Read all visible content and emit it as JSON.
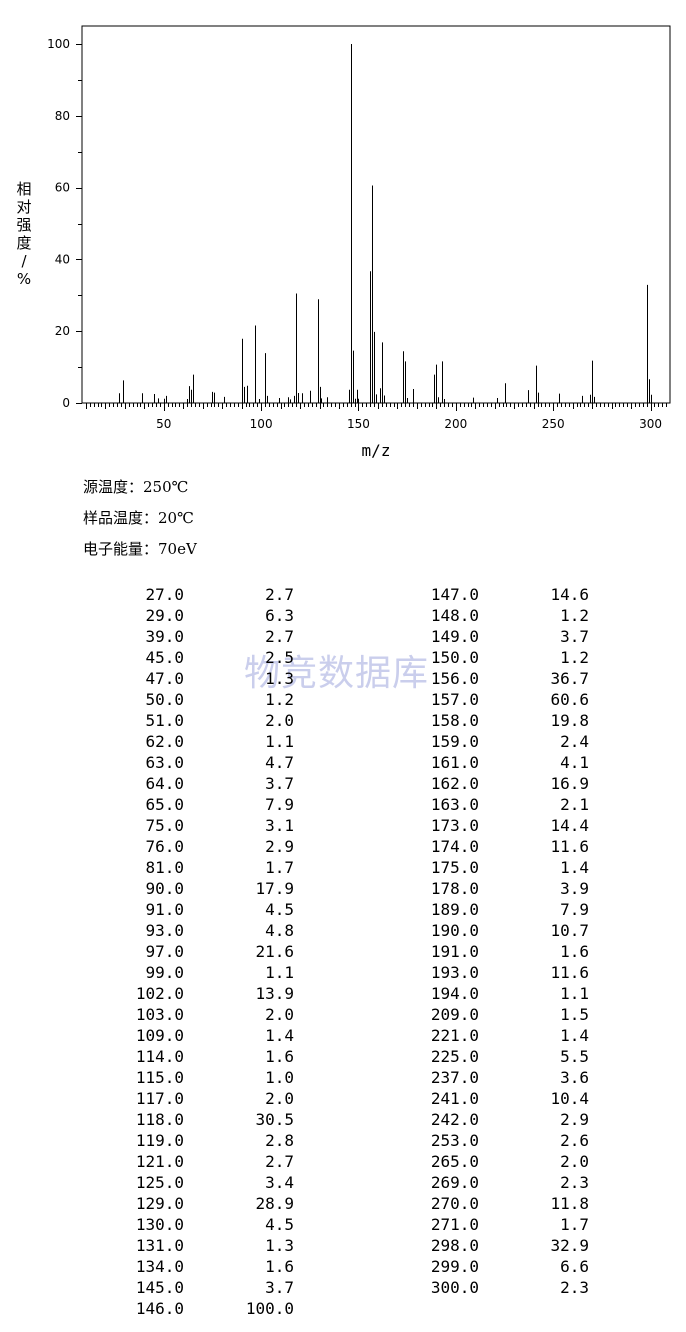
{
  "chart_data": {
    "type": "bar",
    "title": "",
    "xlabel": "m/z",
    "ylabel": "相对强度/%",
    "xlim": [
      8,
      310
    ],
    "ylim": [
      0,
      105
    ],
    "xticks": [
      50,
      100,
      150,
      200,
      250,
      300
    ],
    "yticks": [
      0,
      20,
      40,
      60,
      80,
      100
    ],
    "grid": false,
    "peaks": [
      [
        27.0,
        2.7
      ],
      [
        29.0,
        6.3
      ],
      [
        39.0,
        2.7
      ],
      [
        45.0,
        2.5
      ],
      [
        47.0,
        1.3
      ],
      [
        50.0,
        1.2
      ],
      [
        51.0,
        2.0
      ],
      [
        62.0,
        1.1
      ],
      [
        63.0,
        4.7
      ],
      [
        64.0,
        3.7
      ],
      [
        65.0,
        7.9
      ],
      [
        75.0,
        3.1
      ],
      [
        76.0,
        2.9
      ],
      [
        81.0,
        1.7
      ],
      [
        90.0,
        17.9
      ],
      [
        91.0,
        4.5
      ],
      [
        93.0,
        4.8
      ],
      [
        97.0,
        21.6
      ],
      [
        99.0,
        1.1
      ],
      [
        102.0,
        13.9
      ],
      [
        103.0,
        2.0
      ],
      [
        109.0,
        1.4
      ],
      [
        114.0,
        1.6
      ],
      [
        115.0,
        1.0
      ],
      [
        117.0,
        2.0
      ],
      [
        118.0,
        30.5
      ],
      [
        119.0,
        2.8
      ],
      [
        121.0,
        2.7
      ],
      [
        125.0,
        3.4
      ],
      [
        129.0,
        28.9
      ],
      [
        130.0,
        4.5
      ],
      [
        131.0,
        1.3
      ],
      [
        134.0,
        1.6
      ],
      [
        145.0,
        3.7
      ],
      [
        146.0,
        100.0
      ],
      [
        147.0,
        14.6
      ],
      [
        148.0,
        1.2
      ],
      [
        149.0,
        3.7
      ],
      [
        150.0,
        1.2
      ],
      [
        156.0,
        36.7
      ],
      [
        157.0,
        60.6
      ],
      [
        158.0,
        19.8
      ],
      [
        159.0,
        2.4
      ],
      [
        161.0,
        4.1
      ],
      [
        162.0,
        16.9
      ],
      [
        163.0,
        2.1
      ],
      [
        173.0,
        14.4
      ],
      [
        174.0,
        11.6
      ],
      [
        175.0,
        1.4
      ],
      [
        178.0,
        3.9
      ],
      [
        189.0,
        7.9
      ],
      [
        190.0,
        10.7
      ],
      [
        191.0,
        1.6
      ],
      [
        193.0,
        11.6
      ],
      [
        194.0,
        1.1
      ],
      [
        209.0,
        1.5
      ],
      [
        221.0,
        1.4
      ],
      [
        225.0,
        5.5
      ],
      [
        237.0,
        3.6
      ],
      [
        241.0,
        10.4
      ],
      [
        242.0,
        2.9
      ],
      [
        253.0,
        2.6
      ],
      [
        265.0,
        2.0
      ],
      [
        269.0,
        2.3
      ],
      [
        270.0,
        11.8
      ],
      [
        271.0,
        1.7
      ],
      [
        298.0,
        32.9
      ],
      [
        299.0,
        6.6
      ],
      [
        300.0,
        2.3
      ]
    ]
  },
  "conditions": {
    "source_temp": "源温度：250℃",
    "sample_temp": "样品温度：20℃",
    "electron_energy": "电子能量：70eV"
  },
  "watermark": "物竞数据库",
  "peak_table": {
    "left": [
      [
        "27.0",
        "2.7"
      ],
      [
        "29.0",
        "6.3"
      ],
      [
        "39.0",
        "2.7"
      ],
      [
        "45.0",
        "2.5"
      ],
      [
        "47.0",
        "1.3"
      ],
      [
        "50.0",
        "1.2"
      ],
      [
        "51.0",
        "2.0"
      ],
      [
        "62.0",
        "1.1"
      ],
      [
        "63.0",
        "4.7"
      ],
      [
        "64.0",
        "3.7"
      ],
      [
        "65.0",
        "7.9"
      ],
      [
        "75.0",
        "3.1"
      ],
      [
        "76.0",
        "2.9"
      ],
      [
        "81.0",
        "1.7"
      ],
      [
        "90.0",
        "17.9"
      ],
      [
        "91.0",
        "4.5"
      ],
      [
        "93.0",
        "4.8"
      ],
      [
        "97.0",
        "21.6"
      ],
      [
        "99.0",
        "1.1"
      ],
      [
        "102.0",
        "13.9"
      ],
      [
        "103.0",
        "2.0"
      ],
      [
        "109.0",
        "1.4"
      ],
      [
        "114.0",
        "1.6"
      ],
      [
        "115.0",
        "1.0"
      ],
      [
        "117.0",
        "2.0"
      ],
      [
        "118.0",
        "30.5"
      ],
      [
        "119.0",
        "2.8"
      ],
      [
        "121.0",
        "2.7"
      ],
      [
        "125.0",
        "3.4"
      ],
      [
        "129.0",
        "28.9"
      ],
      [
        "130.0",
        "4.5"
      ],
      [
        "131.0",
        "1.3"
      ],
      [
        "134.0",
        "1.6"
      ],
      [
        "145.0",
        "3.7"
      ],
      [
        "146.0",
        "100.0"
      ]
    ],
    "right": [
      [
        "147.0",
        "14.6"
      ],
      [
        "148.0",
        "1.2"
      ],
      [
        "149.0",
        "3.7"
      ],
      [
        "150.0",
        "1.2"
      ],
      [
        "156.0",
        "36.7"
      ],
      [
        "157.0",
        "60.6"
      ],
      [
        "158.0",
        "19.8"
      ],
      [
        "159.0",
        "2.4"
      ],
      [
        "161.0",
        "4.1"
      ],
      [
        "162.0",
        "16.9"
      ],
      [
        "163.0",
        "2.1"
      ],
      [
        "173.0",
        "14.4"
      ],
      [
        "174.0",
        "11.6"
      ],
      [
        "175.0",
        "1.4"
      ],
      [
        "178.0",
        "3.9"
      ],
      [
        "189.0",
        "7.9"
      ],
      [
        "190.0",
        "10.7"
      ],
      [
        "191.0",
        "1.6"
      ],
      [
        "193.0",
        "11.6"
      ],
      [
        "194.0",
        "1.1"
      ],
      [
        "209.0",
        "1.5"
      ],
      [
        "221.0",
        "1.4"
      ],
      [
        "225.0",
        "5.5"
      ],
      [
        "237.0",
        "3.6"
      ],
      [
        "241.0",
        "10.4"
      ],
      [
        "242.0",
        "2.9"
      ],
      [
        "253.0",
        "2.6"
      ],
      [
        "265.0",
        "2.0"
      ],
      [
        "269.0",
        "2.3"
      ],
      [
        "270.0",
        "11.8"
      ],
      [
        "271.0",
        "1.7"
      ],
      [
        "298.0",
        "32.9"
      ],
      [
        "299.0",
        "6.6"
      ],
      [
        "300.0",
        "2.3"
      ]
    ]
  }
}
